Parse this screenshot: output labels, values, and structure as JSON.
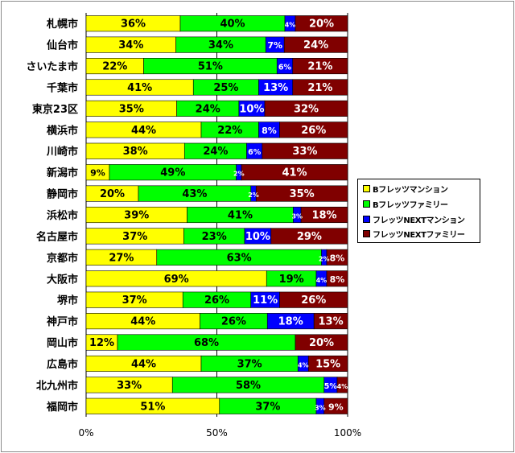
{
  "chart_data": {
    "type": "bar",
    "orientation": "horizontal",
    "stacked": "percent",
    "categories": [
      "札幌市",
      "仙台市",
      "さいたま市",
      "千葉市",
      "東京23区",
      "横浜市",
      "川崎市",
      "新潟市",
      "静岡市",
      "浜松市",
      "名古屋市",
      "京都市",
      "大阪市",
      "堺市",
      "神戸市",
      "岡山市",
      "広島市",
      "北九州市",
      "福岡市"
    ],
    "series": [
      {
        "name": "Bフレッツマンション",
        "color": "#ffff00",
        "values": [
          36,
          34,
          22,
          41,
          35,
          44,
          38,
          9,
          20,
          39,
          37,
          27,
          69,
          37,
          44,
          12,
          44,
          33,
          51
        ]
      },
      {
        "name": "Bフレッツファミリー",
        "color": "#00ff00",
        "values": [
          40,
          34,
          51,
          25,
          24,
          22,
          24,
          49,
          43,
          41,
          23,
          63,
          19,
          26,
          26,
          68,
          37,
          58,
          37
        ]
      },
      {
        "name": "フレッツNEXTマンション",
        "color": "#0000ff",
        "values": [
          4,
          7,
          6,
          13,
          10,
          8,
          6,
          2,
          2,
          3,
          10,
          2,
          4,
          11,
          18,
          0,
          4,
          5,
          3
        ]
      },
      {
        "name": "フレッツNEXTファミリー",
        "color": "#800000",
        "values": [
          20,
          24,
          21,
          21,
          32,
          26,
          33,
          41,
          35,
          18,
          29,
          8,
          8,
          26,
          13,
          20,
          15,
          4,
          9
        ]
      }
    ],
    "xticks": [
      "0%",
      "50%",
      "100%"
    ],
    "xlim": [
      0,
      100
    ],
    "grid": true,
    "legend": "right"
  }
}
